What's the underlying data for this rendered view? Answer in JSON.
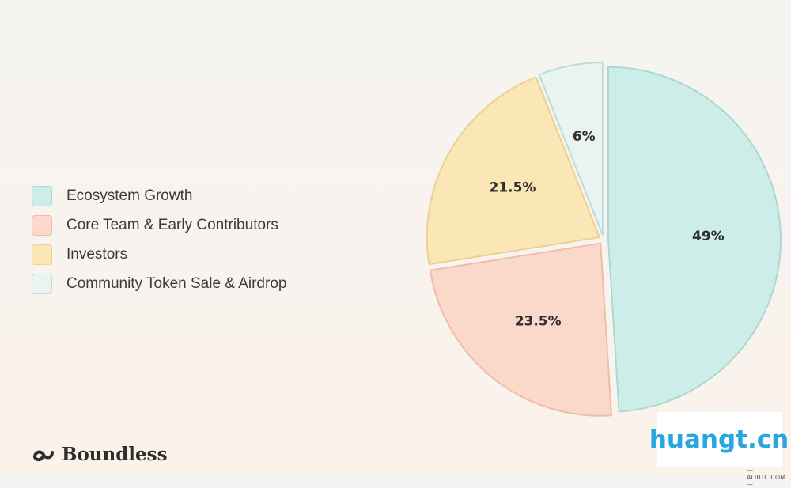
{
  "chart_data": {
    "type": "pie",
    "labels": [
      "Ecosystem Growth",
      "Core Team & Early Contributors",
      "Investors",
      "Community Token Sale & Airdrop"
    ],
    "values": [
      49,
      23.5,
      21.5,
      6
    ],
    "value_labels": [
      "49%",
      "23.5%",
      "21.5%",
      "6%"
    ],
    "colors": [
      "#cdeee8",
      "#fbd9ca",
      "#fbe6b6",
      "#e9f4f2"
    ],
    "border_colors": [
      "#a9d9d0",
      "#efbda5",
      "#ecd18f",
      "#bfdcd6"
    ],
    "legend_position": "left",
    "start": "12 o'clock",
    "direction": "clockwise",
    "exploded": true
  },
  "brand": {
    "name": "Boundless",
    "icon": "infinity-wave-logo"
  },
  "watermark": {
    "text": "huangt.cn",
    "sub": "—ALIBTC.COM—"
  }
}
